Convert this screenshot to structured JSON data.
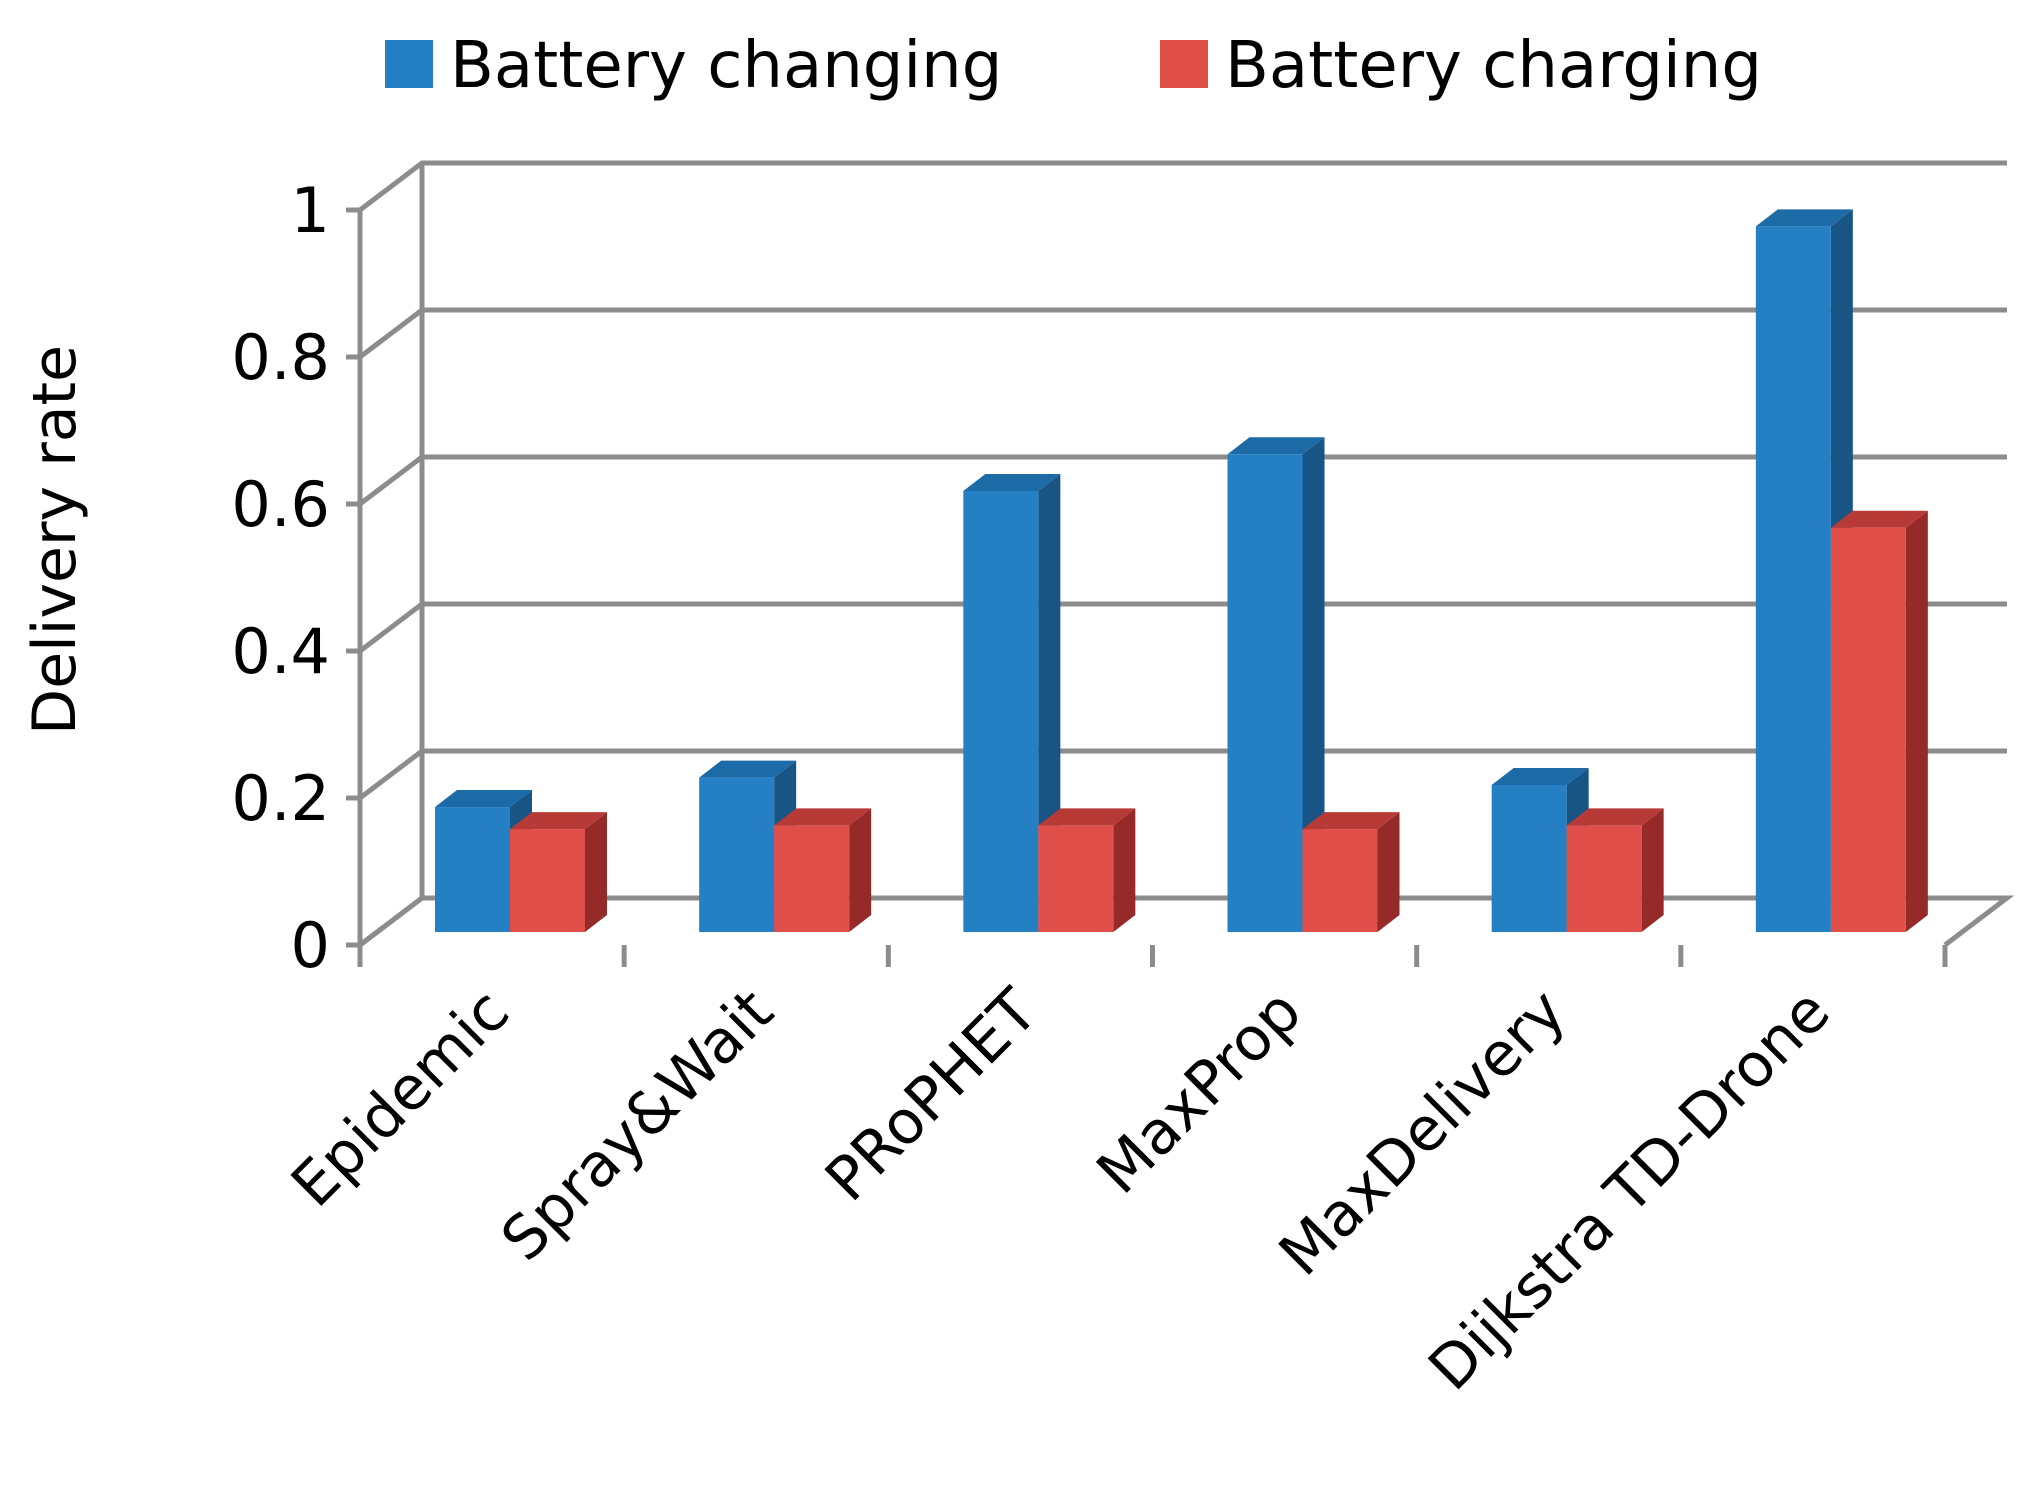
{
  "chart_data": {
    "type": "bar",
    "style": "3d-clustered-column",
    "title": "",
    "xlabel": "",
    "ylabel": "Delivery rate",
    "ylim": [
      0,
      1
    ],
    "yticks": [
      0,
      0.2,
      0.4,
      0.6,
      0.8,
      1
    ],
    "ytick_labels": [
      "0",
      "0.2",
      "0.4",
      "0.6",
      "0.8",
      "1"
    ],
    "grid": true,
    "legend_position": "top",
    "categories": [
      "Epidemic",
      "Spray&Wait",
      "PRoPHET",
      "MaxProp",
      "MaxDelivery",
      "Dijkstra TD-Drone"
    ],
    "series": [
      {
        "name": "Battery changing",
        "color": "#2580C3",
        "side_color": "#185585",
        "top_color": "#1C6AA6",
        "values": [
          0.17,
          0.21,
          0.6,
          0.65,
          0.2,
          0.96
        ]
      },
      {
        "name": "Battery charging",
        "color": "#E04E4A",
        "side_color": "#952A28",
        "top_color": "#B73A37",
        "values": [
          0.14,
          0.145,
          0.145,
          0.14,
          0.145,
          0.55
        ]
      }
    ]
  }
}
